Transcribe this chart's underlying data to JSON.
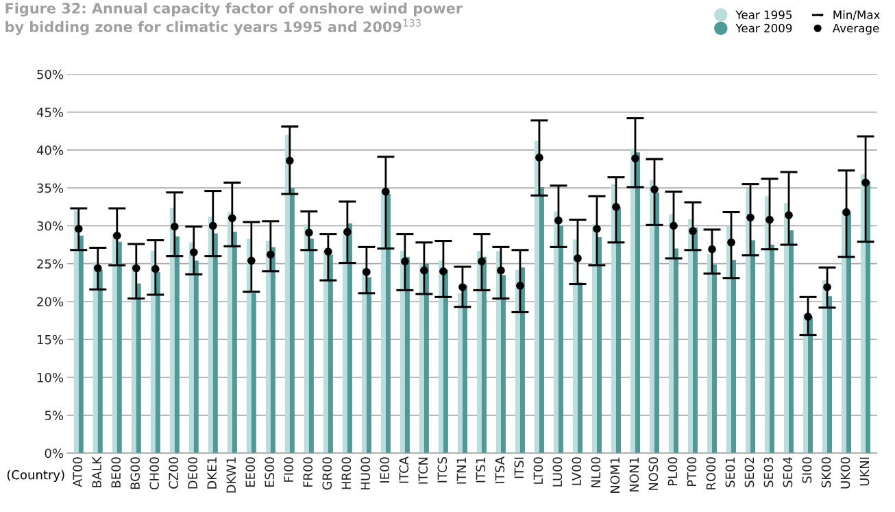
{
  "chart_data": {
    "type": "bar",
    "title": "Figure 32: Annual capacity factor of onshore wind power\nby bidding zone for climatic years 1995 and 2009$^{133}$",
    "xlabel": "(Country)",
    "categories": [
      "AT00",
      "BALK",
      "BE00",
      "BG00",
      "CH00",
      "CZ00",
      "DE00",
      "DKE1",
      "DKW1",
      "EE00",
      "ES00",
      "FI00",
      "FR00",
      "GR00",
      "HR00",
      "HU00",
      "IE00",
      "ITCA",
      "ITCN",
      "ITCS",
      "ITN1",
      "ITS1",
      "ITSA",
      "ITSI",
      "LT00",
      "LU00",
      "LV00",
      "NL00",
      "NOM1",
      "NON1",
      "NOS0",
      "PL00",
      "PT00",
      "RO00",
      "SE01",
      "SE02",
      "SE03",
      "SE04",
      "SI00",
      "SK00",
      "UK00",
      "UKNI"
    ],
    "series": [
      {
        "name": "Year 1995",
        "color": "#b9dedc",
        "values": [
          32.0,
          25.2,
          29.0,
          25.0,
          26.7,
          32.4,
          27.8,
          31.2,
          31.8,
          28.3,
          28.0,
          42.0,
          30.2,
          26.8,
          29.1,
          24.5,
          34.8,
          26.7,
          25.0,
          25.4,
          21.1,
          26.7,
          26.7,
          24.2,
          41.2,
          31.9,
          28.2,
          30.2,
          35.5,
          40.2,
          36.0,
          31.5,
          30.9,
          26.3,
          30.0,
          34.9,
          33.9,
          33.0,
          18.4,
          22.8,
          32.1,
          36.8
        ]
      },
      {
        "name": "Year 2009",
        "color": "#4e9a98",
        "values": [
          28.7,
          24.2,
          27.9,
          22.4,
          23.9,
          28.6,
          25.4,
          29.0,
          29.2,
          21.1,
          27.2,
          35.0,
          28.3,
          26.2,
          30.3,
          23.2,
          34.2,
          25.9,
          25.0,
          24.2,
          22.2,
          25.9,
          23.5,
          24.5,
          35.1,
          30.0,
          22.5,
          28.5,
          32.5,
          39.7,
          34.4,
          27.0,
          29.8,
          24.9,
          25.5,
          28.1,
          27.5,
          29.4,
          18.0,
          20.7,
          31.7,
          35.9
        ]
      },
      {
        "name": "Average",
        "type": "scatter",
        "color": "#000000",
        "marker": "circle",
        "x": [
          "AT00",
          "BALK",
          "BE00",
          "BG00",
          "CH00",
          "CZ00",
          "DE00",
          "DKE1",
          "DKW1",
          "EE00",
          "ES00",
          "FI00",
          "FR00",
          "GR00",
          "HR00",
          "HU00",
          "IE00",
          "ITCA",
          "ITCN",
          "ITCS",
          "ITN1",
          "ITS1",
          "ITSA",
          "ITSI",
          "LT00",
          "LU00",
          "LV00",
          "NL00",
          "NOM1",
          "NON1",
          "NOS0",
          "PL00",
          "PT00",
          "RO00",
          "SE01",
          "SE02",
          "SE03",
          "SE04",
          "SI00",
          "SK00",
          "UK00",
          "UKNI"
        ],
        "values": [
          29.6,
          24.4,
          28.7,
          24.4,
          24.3,
          29.9,
          26.5,
          30.0,
          31.0,
          25.4,
          26.2,
          38.6,
          29.1,
          26.6,
          29.2,
          23.9,
          34.5,
          25.3,
          24.1,
          24.0,
          21.9,
          25.3,
          24.1,
          22.1,
          39.0,
          30.7,
          25.7,
          29.6,
          32.5,
          38.9,
          34.8,
          30.0,
          29.3,
          26.9,
          27.8,
          31.1,
          30.8,
          31.4,
          18.0,
          21.9,
          31.8,
          35.7
        ],
        "errors": [
          [
            26.8,
            32.3
          ],
          [
            21.6,
            27.1
          ],
          [
            24.8,
            32.3
          ],
          [
            20.4,
            27.6
          ],
          [
            20.9,
            28.1
          ],
          [
            26.0,
            34.4
          ],
          [
            23.6,
            29.9
          ],
          [
            26.0,
            34.6
          ],
          [
            27.3,
            35.7
          ],
          [
            21.3,
            30.5
          ],
          [
            24.0,
            30.6
          ],
          [
            34.2,
            43.1
          ],
          [
            26.8,
            31.9
          ],
          [
            22.8,
            28.9
          ],
          [
            25.1,
            33.2
          ],
          [
            21.1,
            27.2
          ],
          [
            27.0,
            39.1
          ],
          [
            21.5,
            28.9
          ],
          [
            21.0,
            27.8
          ],
          [
            20.6,
            28.0
          ],
          [
            19.3,
            24.6
          ],
          [
            21.5,
            28.9
          ],
          [
            20.4,
            27.2
          ],
          [
            18.6,
            26.8
          ],
          [
            34.0,
            43.9
          ],
          [
            27.2,
            35.3
          ],
          [
            22.3,
            30.8
          ],
          [
            24.8,
            33.9
          ],
          [
            27.8,
            36.4
          ],
          [
            35.1,
            44.2
          ],
          [
            30.1,
            38.8
          ],
          [
            25.7,
            34.5
          ],
          [
            26.8,
            33.1
          ],
          [
            23.7,
            29.5
          ],
          [
            23.1,
            31.8
          ],
          [
            26.1,
            35.5
          ],
          [
            26.9,
            36.2
          ],
          [
            27.5,
            37.1
          ],
          [
            15.6,
            20.6
          ],
          [
            19.2,
            24.5
          ],
          [
            25.9,
            37.3
          ],
          [
            27.9,
            41.8
          ]
        ]
      }
    ],
    "annotations": [
      "Min/Max"
    ],
    "ylim": [
      0,
      50
    ],
    "yticks": [
      {
        "value": 0,
        "label": "0%"
      },
      {
        "value": 5,
        "label": "5%"
      },
      {
        "value": 10,
        "label": "10%"
      },
      {
        "value": 15,
        "label": "15%"
      },
      {
        "value": 20,
        "label": "20%"
      },
      {
        "value": 25,
        "label": "25%"
      },
      {
        "value": 30,
        "label": "30%"
      },
      {
        "value": 35,
        "label": "35%"
      },
      {
        "value": 40,
        "label": "40%"
      },
      {
        "value": 45,
        "label": "45%"
      },
      {
        "value": 50,
        "label": "50%"
      }
    ],
    "grid": "y",
    "legend": "top right"
  }
}
